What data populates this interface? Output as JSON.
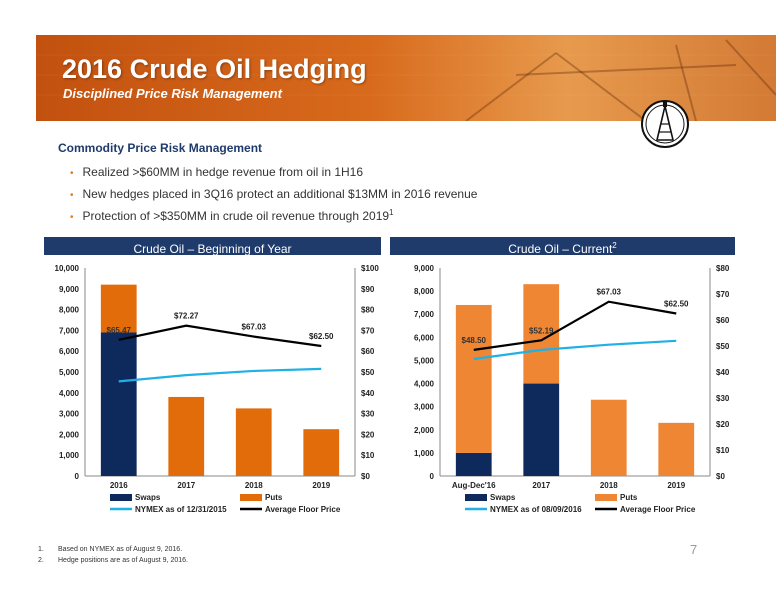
{
  "header": {
    "title": "2016 Crude Oil Hedging",
    "subtitle": "Disciplined Price Risk Management"
  },
  "section": {
    "heading": "Commodity Price Risk Management",
    "bullets": [
      {
        "text": "Realized >$60MM in hedge revenue from oil in 1H16",
        "sup": ""
      },
      {
        "text": "New hedges placed in 3Q16 protect an additional $13MM in 2016 revenue",
        "sup": ""
      },
      {
        "text": "Protection of >$350MM in crude oil revenue through 2019",
        "sup": "1"
      }
    ]
  },
  "panels": [
    {
      "title": "Crude Oil – Beginning of Year",
      "sup": ""
    },
    {
      "title": "Crude Oil – Current",
      "sup": "2"
    }
  ],
  "colors": {
    "swaps": "#0e2a5c",
    "puts_left": "#e36c0a",
    "puts_right": "#ef8634",
    "nymex": "#1fb0e6",
    "floor": "#000000",
    "panel_header": "#1f3b6b"
  },
  "chart_data": [
    {
      "type": "bar",
      "stacked": true,
      "categories": [
        "2016",
        "2017",
        "2018",
        "2019"
      ],
      "series": [
        {
          "name": "Swaps",
          "type": "bar",
          "axis": "left",
          "values": [
            6900,
            0,
            0,
            0
          ]
        },
        {
          "name": "Puts",
          "type": "bar",
          "axis": "left",
          "values": [
            2300,
            3800,
            3250,
            2250
          ]
        },
        {
          "name": "NYMEX as of 12/31/2015",
          "type": "line",
          "axis": "right",
          "values": [
            45.5,
            48.5,
            50.5,
            51.5
          ]
        },
        {
          "name": "Average Floor Price",
          "type": "line",
          "axis": "right",
          "values": [
            65.47,
            72.27,
            67.03,
            62.5
          ]
        }
      ],
      "floor_labels": [
        "$65.47",
        "$72.27",
        "$67.03",
        "$62.50"
      ],
      "ylim": [
        0,
        10000
      ],
      "y2lim": [
        0,
        100
      ],
      "yticks": [
        "0",
        "1,000",
        "2,000",
        "3,000",
        "4,000",
        "5,000",
        "6,000",
        "7,000",
        "8,000",
        "9,000",
        "10,000"
      ],
      "y2ticks": [
        "$0",
        "$10",
        "$20",
        "$30",
        "$40",
        "$50",
        "$60",
        "$70",
        "$80",
        "$90",
        "$100"
      ],
      "legend": [
        "Swaps",
        "Puts",
        "NYMEX as of 12/31/2015",
        "Average Floor Price"
      ]
    },
    {
      "type": "bar",
      "stacked": true,
      "categories": [
        "Aug-Dec'16",
        "2017",
        "2018",
        "2019"
      ],
      "series": [
        {
          "name": "Swaps",
          "type": "bar",
          "axis": "left",
          "values": [
            1000,
            4000,
            0,
            0
          ]
        },
        {
          "name": "Puts",
          "type": "bar",
          "axis": "left",
          "values": [
            6400,
            4300,
            3300,
            2300
          ]
        },
        {
          "name": "NYMEX as of 08/09/2016",
          "type": "line",
          "axis": "right",
          "values": [
            45,
            48.5,
            50.5,
            52
          ]
        },
        {
          "name": "Average Floor Price",
          "type": "line",
          "axis": "right",
          "values": [
            48.5,
            52.19,
            67.03,
            62.5
          ]
        }
      ],
      "floor_labels": [
        "$48.50",
        "$52.19",
        "$67.03",
        "$62.50"
      ],
      "ylim": [
        0,
        9000
      ],
      "y2lim": [
        0,
        80
      ],
      "yticks": [
        "0",
        "1,000",
        "2,000",
        "3,000",
        "4,000",
        "5,000",
        "6,000",
        "7,000",
        "8,000",
        "9,000"
      ],
      "y2ticks": [
        "$0",
        "$10",
        "$20",
        "$30",
        "$40",
        "$50",
        "$60",
        "$70",
        "$80"
      ],
      "legend": [
        "Swaps",
        "Puts",
        "NYMEX as of 08/09/2016",
        "Average Floor Price"
      ]
    }
  ],
  "footnotes": [
    {
      "num": "1.",
      "text": "Based on NYMEX as of August 9, 2016."
    },
    {
      "num": "2.",
      "text": "Hedge positions are as of August 9, 2016."
    }
  ],
  "page_number": "7"
}
